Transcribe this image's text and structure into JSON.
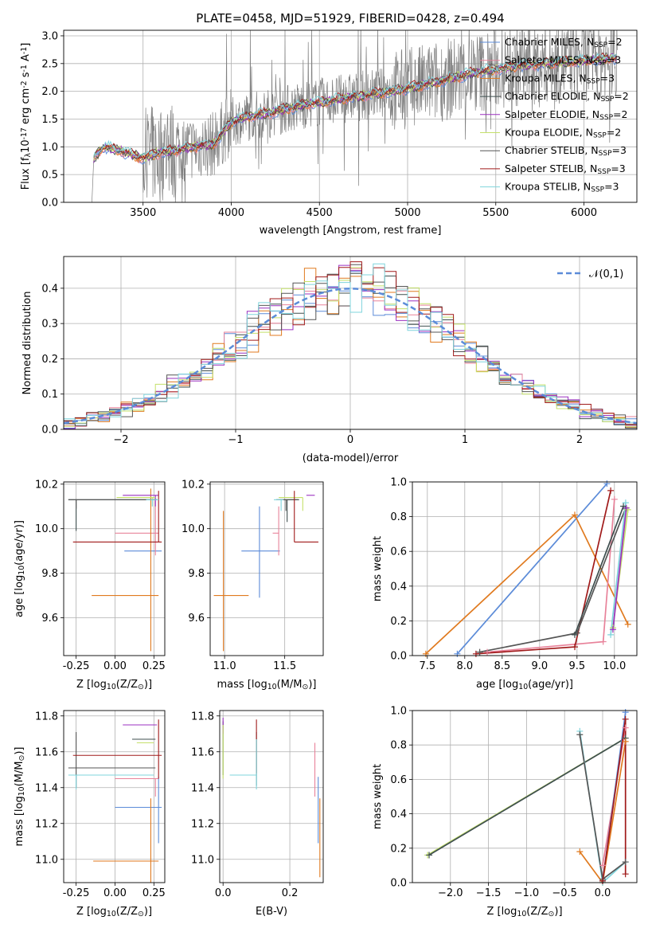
{
  "colors": {
    "chabrier_miles": "#5b8bd8",
    "salpeter_miles": "#e8829a",
    "kroupa_miles": "#e07a1f",
    "chabrier_elodie": "#3f4f4f",
    "salpeter_elodie": "#9b30c0",
    "kroupa_elodie": "#c4e06a",
    "chabrier_stelib": "#555555",
    "salpeter_stelib": "#a01a1a",
    "kroupa_stelib": "#7fd4dc",
    "data": "#808080",
    "normal": "#5b8bd8"
  },
  "chart_data": [
    {
      "id": "spectrum",
      "type": "line",
      "title": "PLATE=0458, MJD=51929, FIBERID=0428, z=0.494",
      "xlabel": "wavelength [Angstrom, rest frame]",
      "ylabel": "Flux [f$_\\lambda$10$^{-17}$ erg cm$^{-2}$ s$^{-1}$ A$^{-1}$]",
      "xlim": [
        3050,
        6300
      ],
      "ylim": [
        0,
        3.1
      ],
      "xticks": [
        3500,
        4000,
        4500,
        5000,
        5500,
        6000
      ],
      "yticks": [
        "0.0",
        "0.5",
        "1.0",
        "1.5",
        "2.0",
        "2.5",
        "3.0"
      ],
      "continuum_points": [
        [
          3220,
          0.8
        ],
        [
          3280,
          1.0
        ],
        [
          3350,
          0.95
        ],
        [
          3500,
          0.8
        ],
        [
          3600,
          0.9
        ],
        [
          3700,
          0.95
        ],
        [
          3800,
          1.0
        ],
        [
          3900,
          1.05
        ],
        [
          4000,
          1.45
        ],
        [
          4100,
          1.55
        ],
        [
          4200,
          1.6
        ],
        [
          4400,
          1.75
        ],
        [
          4600,
          1.85
        ],
        [
          4800,
          1.95
        ],
        [
          5000,
          2.05
        ],
        [
          5200,
          2.2
        ],
        [
          5400,
          2.35
        ],
        [
          5600,
          2.45
        ],
        [
          5800,
          2.5
        ],
        [
          6000,
          2.55
        ],
        [
          6180,
          2.6
        ]
      ],
      "legend": [
        {
          "key": "chabrier_miles",
          "label": "Chabrier MILES, N$_{SSP}$=2"
        },
        {
          "key": "salpeter_miles",
          "label": "Salpeter MILES, N$_{SSP}$=3"
        },
        {
          "key": "kroupa_miles",
          "label": "Kroupa MILES, N$_{SSP}$=3"
        },
        {
          "key": "chabrier_elodie",
          "label": "Chabrier ELODIE, N$_{SSP}$=2"
        },
        {
          "key": "salpeter_elodie",
          "label": "Salpeter ELODIE, N$_{SSP}$=2"
        },
        {
          "key": "kroupa_elodie",
          "label": "Kroupa ELODIE, N$_{SSP}$=2"
        },
        {
          "key": "chabrier_stelib",
          "label": "Chabrier STELIB, N$_{SSP}$=3"
        },
        {
          "key": "salpeter_stelib",
          "label": "Salpeter STELIB, N$_{SSP}$=3"
        },
        {
          "key": "kroupa_stelib",
          "label": "Kroupa STELIB, N$_{SSP}$=3"
        }
      ]
    },
    {
      "id": "residuals",
      "type": "line",
      "xlabel": "(data-model)/error",
      "ylabel": "Normed distribution",
      "xlim": [
        -2.5,
        2.5
      ],
      "ylim": [
        0,
        0.49
      ],
      "xticks": [
        -2,
        -1,
        0,
        1,
        2
      ],
      "xticklabels": [
        "−2",
        "−1",
        "0",
        "1",
        "2"
      ],
      "yticks": [
        "0.0",
        "0.1",
        "0.2",
        "0.3",
        "0.4"
      ],
      "legend_label": "$\\mathcal{N}(0,1)$",
      "bin_width": 0.1,
      "bins_start": -2.5
    },
    {
      "id": "age_vs_Z",
      "type": "scatter",
      "xlabel": "Z [log$_{10}$(Z/Z$_\\odot$)]",
      "ylabel": "age  [log$_{10}$(age/yr)]",
      "xlim": [
        -0.33,
        0.32
      ],
      "ylim": [
        9.43,
        10.21
      ],
      "xticks": [
        "-0.25",
        "0.00",
        "0.25"
      ],
      "yticks": [
        "9.6",
        "9.8",
        "10.0",
        "10.2"
      ],
      "errorbars": [
        {
          "key": "chabrier_miles",
          "x": 0.28,
          "y": 9.9,
          "xerr": [
            0.22,
            0.02
          ],
          "yerr": [
            0.0,
            0.0
          ]
        },
        {
          "key": "salpeter_miles",
          "x": 0.26,
          "y": 9.98,
          "xerr": [
            0.26,
            0.02
          ],
          "yerr": [
            0.1,
            0.15
          ]
        },
        {
          "key": "kroupa_miles",
          "x": 0.23,
          "y": 9.7,
          "xerr": [
            0.38,
            0.05
          ],
          "yerr": [
            0.25,
            0.48
          ]
        },
        {
          "key": "chabrier_elodie",
          "x": -0.25,
          "y": 10.13,
          "xerr": [
            0.05,
            0.48
          ],
          "yerr": [
            0.14,
            0.0
          ]
        },
        {
          "key": "salpeter_elodie",
          "x": 0.26,
          "y": 10.15,
          "xerr": [
            0.21,
            0.02
          ],
          "yerr": [
            0.05,
            0.0
          ]
        },
        {
          "key": "kroupa_elodie",
          "x": 0.24,
          "y": 10.14,
          "xerr": [
            0.23,
            0.02
          ],
          "yerr": [
            0.04,
            0.0
          ]
        },
        {
          "key": "chabrier_stelib",
          "x": -0.25,
          "y": 10.13,
          "xerr": [
            0.05,
            0.52
          ],
          "yerr": [
            0.04,
            0.0
          ]
        },
        {
          "key": "salpeter_stelib",
          "x": 0.28,
          "y": 9.94,
          "xerr": [
            0.55,
            0.02
          ],
          "yerr": [
            0.0,
            0.23
          ]
        },
        {
          "key": "kroupa_stelib",
          "x": 0.24,
          "y": 10.13,
          "xerr": [
            0.04,
            0.04
          ],
          "yerr": [
            0.03,
            0.0
          ]
        }
      ]
    },
    {
      "id": "age_vs_mass",
      "type": "scatter",
      "xlabel": "mass [log$_{10}$(M/M$_\\odot$)]",
      "ylabel": "",
      "xlim": [
        10.88,
        11.82
      ],
      "ylim": [
        9.43,
        10.21
      ],
      "xticks": [
        "11.0",
        "11.5"
      ],
      "yticks": [
        "9.6",
        "9.8",
        "10.0",
        "10.2"
      ],
      "errorbars": [
        {
          "key": "chabrier_miles",
          "x": 11.29,
          "y": 9.9,
          "xerr": [
            0.15,
            0.17
          ],
          "yerr": [
            0.21,
            0.2
          ]
        },
        {
          "key": "salpeter_miles",
          "x": 11.45,
          "y": 9.98,
          "xerr": [
            0.05,
            0.0
          ],
          "yerr": [
            0.1,
            0.12
          ]
        },
        {
          "key": "kroupa_miles",
          "x": 10.99,
          "y": 9.7,
          "xerr": [
            0.08,
            0.21
          ],
          "yerr": [
            0.25,
            0.38
          ]
        },
        {
          "key": "chabrier_elodie",
          "x": 11.52,
          "y": 10.13,
          "xerr": [
            0.09,
            0.1
          ],
          "yerr": [
            0.1,
            0.0
          ]
        },
        {
          "key": "salpeter_elodie",
          "x": 11.75,
          "y": 10.15,
          "xerr": [
            0.07,
            0.0
          ],
          "yerr": [
            0.0,
            0.0
          ]
        },
        {
          "key": "kroupa_elodie",
          "x": 11.65,
          "y": 10.14,
          "xerr": [
            0.2,
            0.0
          ],
          "yerr": [
            0.06,
            0.0
          ]
        },
        {
          "key": "chabrier_stelib",
          "x": 11.51,
          "y": 10.13,
          "xerr": [
            0.05,
            0.1
          ],
          "yerr": [
            0.05,
            0.0
          ]
        },
        {
          "key": "salpeter_stelib",
          "x": 11.58,
          "y": 9.94,
          "xerr": [
            0.0,
            0.2
          ],
          "yerr": [
            0.0,
            0.23
          ]
        },
        {
          "key": "kroupa_stelib",
          "x": 11.47,
          "y": 10.13,
          "xerr": [
            0.06,
            0.02
          ],
          "yerr": [
            0.05,
            0.0
          ]
        }
      ]
    },
    {
      "id": "massweight_vs_age",
      "type": "line",
      "xlabel": "age  [log$_{10}$(age/yr)]",
      "ylabel": "mass weight",
      "xlim": [
        7.3,
        10.3
      ],
      "ylim": [
        0,
        1.0
      ],
      "xticks": [
        "7.5",
        "8.0",
        "8.5",
        "9.0",
        "9.5",
        "10.0"
      ],
      "yticks": [
        "0.0",
        "0.2",
        "0.4",
        "0.6",
        "0.8",
        "1.0"
      ],
      "series": [
        {
          "key": "chabrier_miles",
          "points": [
            [
              7.9,
              0.01
            ],
            [
              9.9,
              0.99
            ]
          ]
        },
        {
          "key": "kroupa_miles",
          "points": [
            [
              7.48,
              0.01
            ],
            [
              9.47,
              0.81
            ],
            [
              10.18,
              0.18
            ]
          ]
        },
        {
          "key": "salpeter_miles",
          "points": [
            [
              8.3,
              0.02
            ],
            [
              9.85,
              0.08
            ],
            [
              10.0,
              0.9
            ]
          ]
        },
        {
          "key": "salpeter_stelib",
          "points": [
            [
              8.15,
              0.01
            ],
            [
              9.47,
              0.05
            ],
            [
              9.95,
              0.95
            ]
          ]
        },
        {
          "key": "chabrier_stelib",
          "points": [
            [
              8.2,
              0.02
            ],
            [
              9.5,
              0.13
            ],
            [
              10.15,
              0.85
            ]
          ]
        },
        {
          "key": "chabrier_elodie",
          "points": [
            [
              9.47,
              0.12
            ],
            [
              10.12,
              0.86
            ]
          ]
        },
        {
          "key": "kroupa_elodie",
          "points": [
            [
              9.98,
              0.16
            ],
            [
              10.18,
              0.84
            ]
          ]
        },
        {
          "key": "kroupa_stelib",
          "points": [
            [
              9.95,
              0.12
            ],
            [
              10.15,
              0.88
            ]
          ]
        },
        {
          "key": "salpeter_elodie",
          "points": [
            [
              9.98,
              0.15
            ],
            [
              10.16,
              0.85
            ]
          ]
        }
      ]
    },
    {
      "id": "mass_vs_Z",
      "type": "scatter",
      "xlabel": "Z [log$_{10}$(Z/Z$_\\odot$)]",
      "ylabel": "mass [log$_{10}$(M/M$_\\odot$)]",
      "xlim": [
        -0.33,
        0.32
      ],
      "ylim": [
        10.87,
        11.83
      ],
      "xticks": [
        "-0.25",
        "0.00",
        "0.25"
      ],
      "yticks": [
        "11.0",
        "11.2",
        "11.4",
        "11.6",
        "11.8"
      ],
      "errorbars": [
        {
          "key": "chabrier_miles",
          "x": 0.28,
          "y": 11.29,
          "xerr": [
            0.28,
            0.02
          ],
          "yerr": [
            0.2,
            0.17
          ]
        },
        {
          "key": "salpeter_miles",
          "x": 0.26,
          "y": 11.45,
          "xerr": [
            0.26,
            0.02
          ],
          "yerr": [
            0.1,
            0.0
          ]
        },
        {
          "key": "kroupa_miles",
          "x": 0.23,
          "y": 10.99,
          "xerr": [
            0.37,
            0.05
          ],
          "yerr": [
            0.14,
            0.35
          ]
        },
        {
          "key": "chabrier_elodie",
          "x": 0.24,
          "y": 11.67,
          "xerr": [
            0.13,
            0.02
          ],
          "yerr": [
            0.0,
            0.0
          ]
        },
        {
          "key": "salpeter_elodie",
          "x": 0.25,
          "y": 11.75,
          "xerr": [
            0.2,
            0.02
          ],
          "yerr": [
            0.0,
            0.0
          ]
        },
        {
          "key": "kroupa_elodie",
          "x": 0.23,
          "y": 11.65,
          "xerr": [
            0.09,
            0.02
          ],
          "yerr": [
            0.0,
            0.0
          ]
        },
        {
          "key": "chabrier_stelib",
          "x": -0.25,
          "y": 11.51,
          "xerr": [
            0.05,
            0.51
          ],
          "yerr": [
            0.11,
            0.2
          ]
        },
        {
          "key": "salpeter_stelib",
          "x": 0.28,
          "y": 11.58,
          "xerr": [
            0.55,
            0.02
          ],
          "yerr": [
            0.13,
            0.2
          ]
        },
        {
          "key": "kroupa_stelib",
          "x": -0.25,
          "y": 11.47,
          "xerr": [
            0.05,
            0.5
          ],
          "yerr": [
            0.08,
            0.0
          ]
        }
      ]
    },
    {
      "id": "mass_vs_EBV",
      "type": "scatter",
      "xlabel": "E(B-V)",
      "ylabel": "",
      "xlim": [
        -0.01,
        0.3
      ],
      "ylim": [
        10.87,
        11.83
      ],
      "xticks": [
        "0.0",
        "0.2"
      ],
      "yticks": [
        "11.0",
        "11.2",
        "11.4",
        "11.6",
        "11.8"
      ],
      "errorbars": [
        {
          "key": "chabrier_miles",
          "x": 0.285,
          "y": 11.29,
          "xerr": [
            0.0,
            0.0
          ],
          "yerr": [
            0.2,
            0.17
          ]
        },
        {
          "key": "salpeter_miles",
          "x": 0.275,
          "y": 11.45,
          "xerr": [
            0.0,
            0.0
          ],
          "yerr": [
            0.1,
            0.2
          ]
        },
        {
          "key": "kroupa_miles",
          "x": 0.29,
          "y": 11.1,
          "xerr": [
            0.0,
            0.0
          ],
          "yerr": [
            0.2,
            0.24
          ]
        },
        {
          "key": "chabrier_elodie",
          "x": 0.0,
          "y": 11.67,
          "xerr": [
            0.0,
            0.0
          ],
          "yerr": [
            0.2,
            0.1
          ]
        },
        {
          "key": "salpeter_elodie",
          "x": 0.0,
          "y": 11.75,
          "xerr": [
            0.0,
            0.0
          ],
          "yerr": [
            0.05,
            0.04
          ]
        },
        {
          "key": "kroupa_elodie",
          "x": 0.0,
          "y": 11.65,
          "xerr": [
            0.0,
            0.0
          ],
          "yerr": [
            0.2,
            0.1
          ]
        },
        {
          "key": "chabrier_stelib",
          "x": 0.1,
          "y": 11.51,
          "xerr": [
            0.0,
            0.0
          ],
          "yerr": [
            0.1,
            0.2
          ]
        },
        {
          "key": "salpeter_stelib",
          "x": 0.1,
          "y": 11.58,
          "xerr": [
            0.0,
            0.0
          ],
          "yerr": [
            0.1,
            0.2
          ]
        },
        {
          "key": "kroupa_stelib",
          "x": 0.1,
          "y": 11.47,
          "xerr": [
            0.08,
            0.0
          ],
          "yerr": [
            0.08,
            0.2
          ]
        }
      ]
    },
    {
      "id": "massweight_vs_Z",
      "type": "line",
      "xlabel": "Z [log$_{10}$(Z/Z$_\\odot$)]",
      "ylabel": "mass weight",
      "xlim": [
        -2.5,
        0.45
      ],
      "ylim": [
        0,
        1.0
      ],
      "xticks": [
        "−2.0",
        "−1.5",
        "−1.0",
        "−0.5",
        "0.0"
      ],
      "xtickvals": [
        -2.0,
        -1.5,
        -1.0,
        -0.5,
        0.0
      ],
      "yticks": [
        "0.0",
        "0.2",
        "0.4",
        "0.6",
        "0.8",
        "1.0"
      ],
      "series": [
        {
          "key": "kroupa_elodie",
          "points": [
            [
              -2.3,
              0.16
            ],
            [
              0.3,
              0.84
            ]
          ]
        },
        {
          "key": "chabrier_elodie",
          "points": [
            [
              -2.28,
              0.16
            ],
            [
              0.3,
              0.84
            ]
          ]
        },
        {
          "key": "kroupa_miles",
          "points": [
            [
              -0.3,
              0.18
            ],
            [
              0.0,
              0.0
            ],
            [
              0.3,
              0.82
            ]
          ]
        },
        {
          "key": "kroupa_stelib",
          "points": [
            [
              -0.3,
              0.88
            ],
            [
              0.0,
              0.0
            ],
            [
              0.3,
              0.12
            ]
          ]
        },
        {
          "key": "chabrier_stelib",
          "points": [
            [
              -0.3,
              0.86
            ],
            [
              0.0,
              0.02
            ],
            [
              0.3,
              0.12
            ]
          ]
        },
        {
          "key": "salpeter_miles",
          "points": [
            [
              0.0,
              0.1
            ],
            [
              0.3,
              0.9
            ]
          ]
        },
        {
          "key": "chabrier_miles",
          "points": [
            [
              0.0,
              0.01
            ],
            [
              0.3,
              0.99
            ]
          ]
        },
        {
          "key": "salpeter_stelib",
          "points": [
            [
              0.0,
              0.01
            ],
            [
              0.3,
              0.95
            ],
            [
              0.3,
              0.05
            ]
          ]
        }
      ]
    }
  ]
}
